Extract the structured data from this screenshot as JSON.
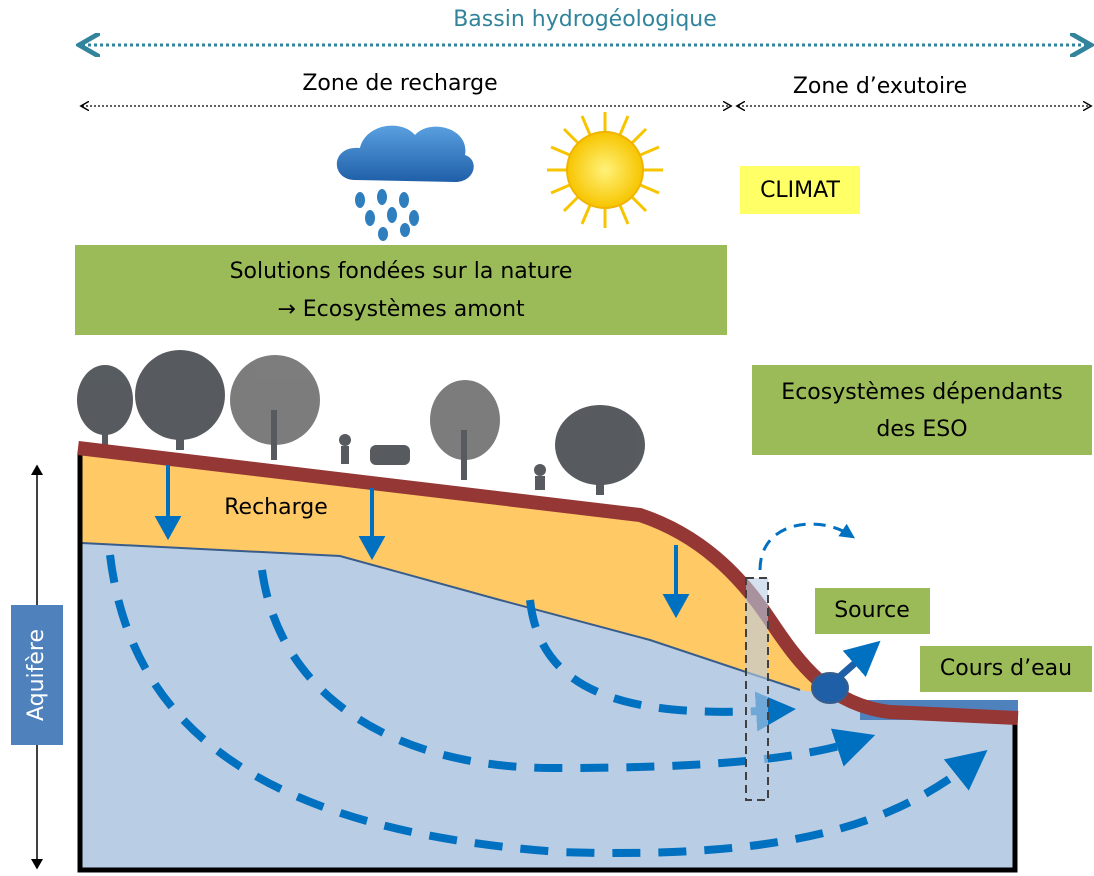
{
  "header": {
    "title": "Bassin hydrogéologique"
  },
  "zones": {
    "recharge": "Zone de recharge",
    "exutoire": "Zone d’exutoire"
  },
  "labels": {
    "climat": "CLIMAT",
    "solutions": [
      "Solutions fondées sur la nature",
      "→ Ecosystèmes amont"
    ],
    "ecosystemes": [
      "Ecosystèmes dépendants",
      "des ESO"
    ],
    "recharge": "Recharge",
    "source": "Source",
    "cours_eau": "Cours d’eau",
    "aquifere": "Aquifère"
  }
}
